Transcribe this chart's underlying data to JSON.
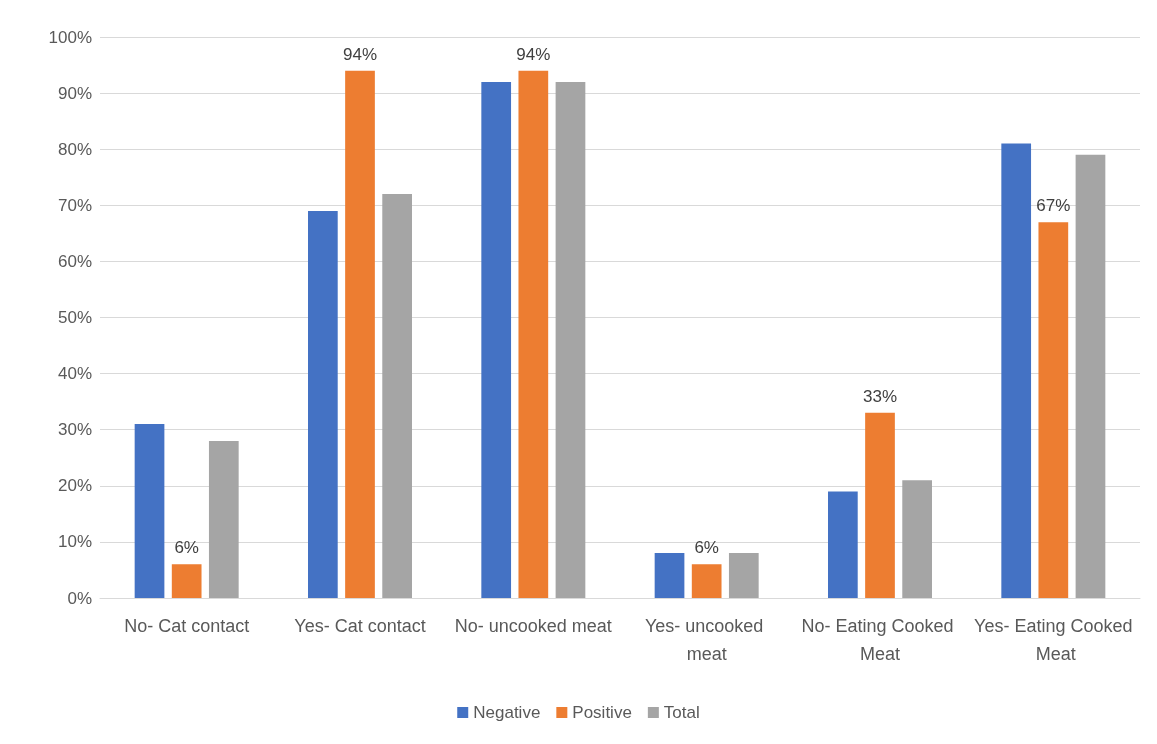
{
  "chart_data": {
    "type": "bar",
    "categories": [
      "No- Cat contact",
      "Yes- Cat contact",
      "No- uncooked meat",
      "Yes- uncooked meat",
      "No- Eating Cooked Meat",
      "Yes- Eating Cooked Meat"
    ],
    "series": [
      {
        "name": "Negative",
        "color": "#4472c4",
        "values": [
          31,
          69,
          92,
          8,
          19,
          81
        ]
      },
      {
        "name": "Positive",
        "color": "#ed7d31",
        "values": [
          6,
          94,
          94,
          6,
          33,
          67
        ],
        "value_labels": [
          "6%",
          "94%",
          "94%",
          "6%",
          "33%",
          "67%"
        ]
      },
      {
        "name": "Total",
        "color": "#a5a5a5",
        "values": [
          28,
          72,
          92,
          8,
          21,
          79
        ]
      }
    ],
    "ylim": [
      0,
      100
    ],
    "yticks": [
      {
        "value": 0,
        "label": "0%"
      },
      {
        "value": 10,
        "label": "10%"
      },
      {
        "value": 20,
        "label": "20%"
      },
      {
        "value": 30,
        "label": "30%"
      },
      {
        "value": 40,
        "label": "40%"
      },
      {
        "value": 50,
        "label": "50%"
      },
      {
        "value": 60,
        "label": "60%"
      },
      {
        "value": 70,
        "label": "70%"
      },
      {
        "value": 80,
        "label": "80%"
      },
      {
        "value": 90,
        "label": "90%"
      },
      {
        "value": 100,
        "label": "100%"
      }
    ],
    "grid": "y",
    "legend": "bottom"
  }
}
